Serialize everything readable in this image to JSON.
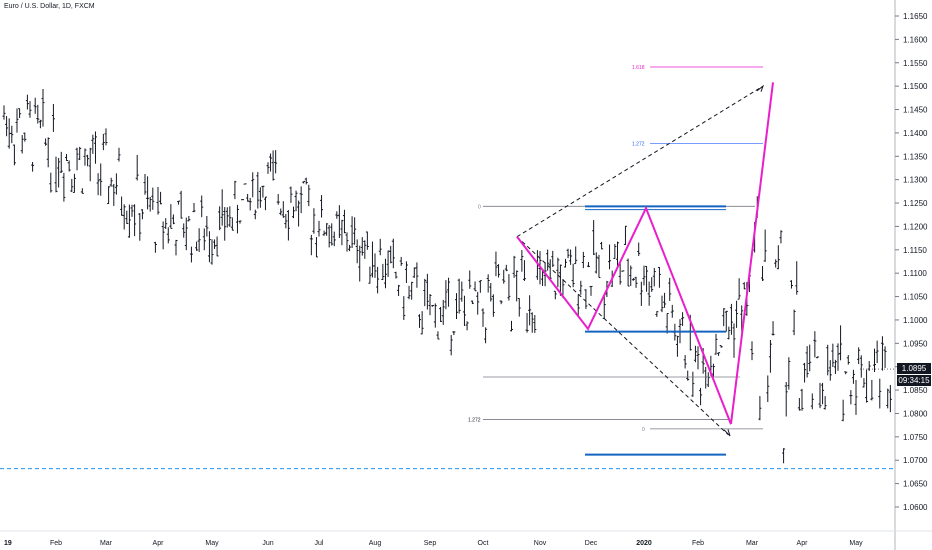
{
  "symbol": "Euro / U.S. Dollar, 1D, FXCM",
  "current_price": "1.0895",
  "countdown": "09:34:15",
  "chart_data": {
    "type": "ohlc",
    "title": "Euro / U.S. Dollar, 1D, FXCM",
    "y_ticks": [
      "1.1650",
      "1.1600",
      "1.1550",
      "1.1500",
      "1.1450",
      "1.1400",
      "1.1350",
      "1.1300",
      "1.1250",
      "1.1200",
      "1.1150",
      "1.1100",
      "1.1050",
      "1.1000",
      "1.0950",
      "1.0900",
      "1.0850",
      "1.0800",
      "1.0750",
      "1.0700",
      "1.0650",
      "1.0600"
    ],
    "y_range": [
      1.0575,
      1.168
    ],
    "x_ticks": [
      "19",
      "Feb",
      "Mar",
      "Apr",
      "May",
      "Jun",
      "Jul",
      "Aug",
      "Sep",
      "Oct",
      "Nov",
      "Dec",
      "2020",
      "Feb",
      "Mar",
      "Apr",
      "May"
    ],
    "colors": {
      "pattern": "#e91ecc",
      "fib": "#787b86",
      "fib_ext": "#2962ff",
      "support": "#1565c0",
      "dashed": "#2196f3",
      "bars": "#131722"
    },
    "annotations": {
      "fib_labels": [
        {
          "text": "1.618",
          "price": 1.1541
        },
        {
          "text": "1.272",
          "price": 1.1377
        },
        {
          "text": "0",
          "price": 1.1238
        },
        {
          "text": "1.272",
          "price": 1.0787
        },
        {
          "text": "0",
          "price": 1.0767
        }
      ],
      "horizontal_support": [
        1.1243,
        1.1236,
        1.0975,
        1.0712
      ],
      "dashed_level": 1.0682,
      "gray_levels": [
        1.1243,
        1.0878
      ],
      "zigzag_abcd": [
        {
          "date": "Oct 2019",
          "price": 1.1178
        },
        {
          "date": "Nov 2019",
          "price": 1.0981
        },
        {
          "date": "Dec 2019",
          "price": 1.1239
        },
        {
          "date": "Feb 2020",
          "price": 1.0777
        }
      ],
      "breakout_leg": [
        {
          "date": "Feb 2020",
          "price": 1.0778
        },
        {
          "date": "Mar 2020",
          "price": 1.1508
        }
      ],
      "dashed_projection": [
        {
          "date": "Oct 2019",
          "price": 1.1178
        },
        {
          "date": "Feb 2020",
          "price": 1.0755
        },
        {
          "date": "Oct 2019",
          "price": 1.1178
        },
        {
          "date": "Mar 2020",
          "price": 1.15
        }
      ]
    },
    "series_ohlc_monthly_approx": [
      {
        "month": "Jan 2019",
        "range": [
          1.13,
          1.157
        ]
      },
      {
        "month": "Feb 2019",
        "range": [
          1.124,
          1.149
        ]
      },
      {
        "month": "Mar 2019",
        "range": [
          1.118,
          1.144
        ]
      },
      {
        "month": "Apr 2019",
        "range": [
          1.111,
          1.132
        ]
      },
      {
        "month": "May 2019",
        "range": [
          1.111,
          1.126
        ]
      },
      {
        "month": "Jun 2019",
        "range": [
          1.118,
          1.141
        ]
      },
      {
        "month": "Jul 2019",
        "range": [
          1.113,
          1.129
        ]
      },
      {
        "month": "Aug 2019",
        "range": [
          1.103,
          1.125
        ]
      },
      {
        "month": "Sep 2019",
        "range": [
          1.091,
          1.111
        ]
      },
      {
        "month": "Oct 2019",
        "range": [
          1.088,
          1.118
        ]
      },
      {
        "month": "Nov 2019",
        "range": [
          1.098,
          1.117
        ]
      },
      {
        "month": "Dec 2019",
        "range": [
          1.098,
          1.124
        ]
      },
      {
        "month": "Jan 2020",
        "range": [
          1.099,
          1.124
        ]
      },
      {
        "month": "Feb 2020",
        "range": [
          1.0777,
          1.1
        ]
      },
      {
        "month": "Mar 2020",
        "range": [
          1.0636,
          1.1495
        ]
      },
      {
        "month": "Apr 2020",
        "range": [
          1.073,
          1.099
        ]
      },
      {
        "month": "May 2020",
        "range": [
          1.078,
          1.101
        ]
      }
    ]
  }
}
